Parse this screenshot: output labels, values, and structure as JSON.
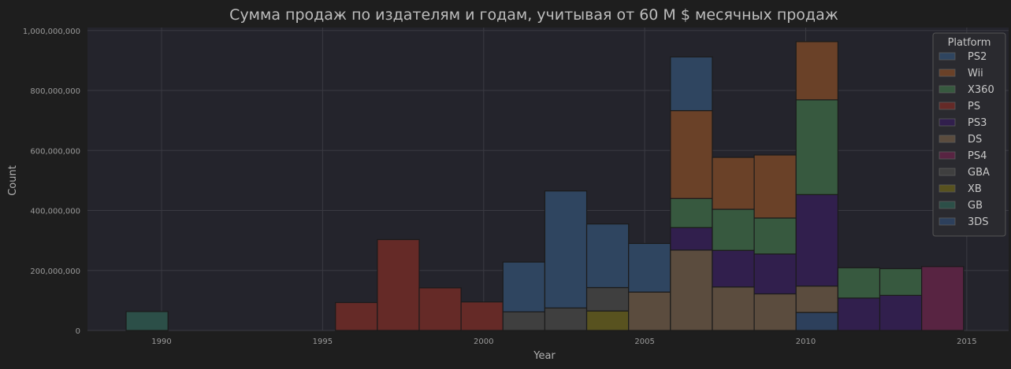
{
  "chart_data": {
    "type": "bar",
    "title": "Сумма продаж по издателям и годам, учитывая от 60 М $ месячных продаж",
    "xlabel": "Year",
    "ylabel": "Count",
    "xlim": [
      1987.7,
      2016.3
    ],
    "ylim": [
      0,
      1010000000
    ],
    "x_ticks": [
      1990,
      1995,
      2000,
      2005,
      2010,
      2015
    ],
    "y_ticks": [
      0,
      200000000,
      400000000,
      600000000,
      800000000,
      1000000000
    ],
    "y_tick_labels": [
      "0",
      "200,000,000",
      "400,000,000",
      "600,000,000",
      "800,000,000",
      "1,000,000,000"
    ],
    "grid": true,
    "legend_position": "top-right",
    "legend_title": "Platform",
    "series": [
      {
        "name": "PS2",
        "color": "#2f4560"
      },
      {
        "name": "Wii",
        "color": "#6a4128"
      },
      {
        "name": "X360",
        "color": "#37593f"
      },
      {
        "name": "PS",
        "color": "#652a27"
      },
      {
        "name": "PS3",
        "color": "#311f4d"
      },
      {
        "name": "DS",
        "color": "#5b4c3e"
      },
      {
        "name": "PS4",
        "color": "#582442"
      },
      {
        "name": "GBA",
        "color": "#3f3f3f"
      },
      {
        "name": "XB",
        "color": "#58521f"
      },
      {
        "name": "GB",
        "color": "#2c4f48"
      },
      {
        "name": "3DS",
        "color": "#2d405c"
      }
    ],
    "bars": [
      {
        "x0": 1988.9,
        "x1": 1990.2,
        "stack": [
          {
            "platform": "GB",
            "value": 63000000
          }
        ]
      },
      {
        "x0": 1995.4,
        "x1": 1996.7,
        "stack": [
          {
            "platform": "PS",
            "value": 93000000
          }
        ]
      },
      {
        "x0": 1996.7,
        "x1": 1998.0,
        "stack": [
          {
            "platform": "PS",
            "value": 303000000
          }
        ]
      },
      {
        "x0": 1998.0,
        "x1": 1999.3,
        "stack": [
          {
            "platform": "PS",
            "value": 142000000
          }
        ]
      },
      {
        "x0": 1999.3,
        "x1": 2000.6,
        "stack": [
          {
            "platform": "PS",
            "value": 95000000
          }
        ]
      },
      {
        "x0": 2000.6,
        "x1": 2001.9,
        "stack": [
          {
            "platform": "GBA",
            "value": 62000000
          },
          {
            "platform": "PS2",
            "value": 166000000
          }
        ]
      },
      {
        "x0": 2001.9,
        "x1": 2003.2,
        "stack": [
          {
            "platform": "GBA",
            "value": 75000000
          },
          {
            "platform": "PS2",
            "value": 390000000
          }
        ]
      },
      {
        "x0": 2003.2,
        "x1": 2004.5,
        "stack": [
          {
            "platform": "XB",
            "value": 65000000
          },
          {
            "platform": "GBA",
            "value": 78000000
          },
          {
            "platform": "PS2",
            "value": 212000000
          }
        ]
      },
      {
        "x0": 2004.5,
        "x1": 2005.8,
        "stack": [
          {
            "platform": "DS",
            "value": 128000000
          },
          {
            "platform": "PS2",
            "value": 162000000
          }
        ]
      },
      {
        "x0": 2005.8,
        "x1": 2007.1,
        "stack": [
          {
            "platform": "DS",
            "value": 268000000
          },
          {
            "platform": "PS3",
            "value": 75000000
          },
          {
            "platform": "X360",
            "value": 97000000
          },
          {
            "platform": "Wii",
            "value": 293000000
          },
          {
            "platform": "PS2",
            "value": 179000000
          }
        ]
      },
      {
        "x0": 2007.1,
        "x1": 2008.4,
        "stack": [
          {
            "platform": "DS",
            "value": 145000000
          },
          {
            "platform": "PS3",
            "value": 122000000
          },
          {
            "platform": "X360",
            "value": 137000000
          },
          {
            "platform": "Wii",
            "value": 173000000
          }
        ]
      },
      {
        "x0": 2008.4,
        "x1": 2009.7,
        "stack": [
          {
            "platform": "DS",
            "value": 122000000
          },
          {
            "platform": "PS3",
            "value": 133000000
          },
          {
            "platform": "X360",
            "value": 120000000
          },
          {
            "platform": "Wii",
            "value": 210000000
          }
        ]
      },
      {
        "x0": 2009.7,
        "x1": 2011.0,
        "stack": [
          {
            "platform": "3DS",
            "value": 60000000
          },
          {
            "platform": "DS",
            "value": 88000000
          },
          {
            "platform": "PS3",
            "value": 305000000
          },
          {
            "platform": "X360",
            "value": 316000000
          },
          {
            "platform": "Wii",
            "value": 194000000
          }
        ]
      },
      {
        "x0": 2011.0,
        "x1": 2012.3,
        "stack": [
          {
            "platform": "PS3",
            "value": 108000000
          },
          {
            "platform": "X360",
            "value": 101000000
          }
        ]
      },
      {
        "x0": 2012.3,
        "x1": 2013.6,
        "stack": [
          {
            "platform": "PS3",
            "value": 117000000
          },
          {
            "platform": "X360",
            "value": 89000000
          }
        ]
      },
      {
        "x0": 2013.6,
        "x1": 2014.9,
        "stack": [
          {
            "platform": "PS4",
            "value": 213000000
          }
        ]
      }
    ]
  }
}
